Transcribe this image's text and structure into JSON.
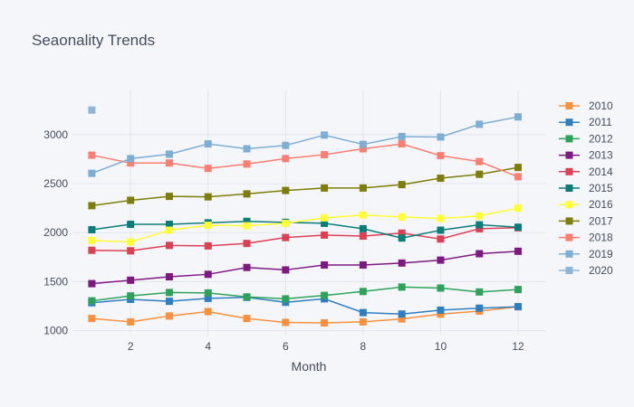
{
  "chart_data": {
    "type": "line",
    "title": "Seaonality Trends",
    "xlabel": "Month",
    "ylabel": "",
    "xlim": [
      0.5,
      12.7
    ],
    "ylim": [
      960,
      3450
    ],
    "x_ticks": [
      2,
      4,
      6,
      8,
      10,
      12
    ],
    "y_ticks": [
      1000,
      1500,
      2000,
      2500,
      3000
    ],
    "x": [
      1,
      2,
      3,
      4,
      5,
      6,
      7,
      8,
      9,
      10,
      11,
      12
    ],
    "grid": true,
    "legend_position": "right",
    "marker": "square",
    "series": [
      {
        "name": "2010",
        "color": "#f7913d",
        "values": [
          1125,
          1090,
          1150,
          1195,
          1125,
          1085,
          1080,
          1090,
          1120,
          1170,
          1200,
          1245
        ]
      },
      {
        "name": "2011",
        "color": "#2f7ec0",
        "values": [
          1285,
          1320,
          1300,
          1330,
          1340,
          1290,
          1325,
          1185,
          1170,
          1210,
          1230,
          1245
        ]
      },
      {
        "name": "2012",
        "color": "#2ea25a",
        "values": [
          1305,
          1355,
          1390,
          1385,
          1345,
          1325,
          1360,
          1400,
          1445,
          1435,
          1395,
          1420
        ]
      },
      {
        "name": "2013",
        "color": "#7d1a82",
        "values": [
          1480,
          1515,
          1550,
          1575,
          1645,
          1620,
          1670,
          1670,
          1690,
          1720,
          1785,
          1810
        ]
      },
      {
        "name": "2014",
        "color": "#db4054",
        "values": [
          1820,
          1815,
          1870,
          1865,
          1890,
          1950,
          1975,
          1965,
          1995,
          1935,
          2040,
          2050
        ]
      },
      {
        "name": "2015",
        "color": "#0b7d79",
        "values": [
          2030,
          2085,
          2085,
          2100,
          2115,
          2105,
          2095,
          2040,
          1945,
          2025,
          2080,
          2055
        ]
      },
      {
        "name": "2016",
        "color": "#ffff33",
        "values": [
          1920,
          1905,
          2025,
          2075,
          2070,
          2095,
          2150,
          2180,
          2160,
          2145,
          2170,
          2250
        ]
      },
      {
        "name": "2017",
        "color": "#7d7d0b",
        "values": [
          2275,
          2330,
          2370,
          2365,
          2395,
          2430,
          2455,
          2455,
          2490,
          2555,
          2595,
          2665
        ]
      },
      {
        "name": "2018",
        "color": "#fa7e72",
        "values": [
          2790,
          2710,
          2710,
          2655,
          2700,
          2755,
          2795,
          2855,
          2905,
          2785,
          2725,
          2570
        ]
      },
      {
        "name": "2019",
        "color": "#7eaed3",
        "values": [
          2605,
          2755,
          2800,
          2905,
          2855,
          2890,
          2995,
          2900,
          2980,
          2975,
          3105,
          3180
        ]
      },
      {
        "name": "2020",
        "color": "#8fb6d8",
        "values": [
          3250,
          null,
          null,
          null,
          null,
          null,
          null,
          null,
          null,
          null,
          null,
          null
        ]
      }
    ]
  }
}
